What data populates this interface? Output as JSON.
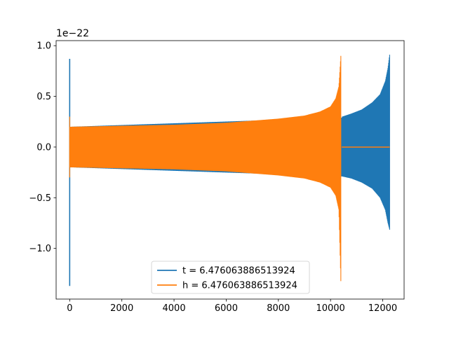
{
  "chart_data": {
    "type": "line",
    "title": "",
    "xlabel": "",
    "ylabel": "",
    "offset_label": "1e−22",
    "xlim": [
      -520,
      12820
    ],
    "ylim": [
      -1.5,
      1.05
    ],
    "x_ticks": [
      0,
      2000,
      4000,
      6000,
      8000,
      10000,
      12000
    ],
    "x_tick_labels": [
      "0",
      "2000",
      "4000",
      "6000",
      "8000",
      "10000",
      "12000"
    ],
    "y_ticks": [
      -1.0,
      -0.5,
      0.0,
      0.5,
      1.0
    ],
    "y_tick_labels": [
      "−1.0",
      "−0.5",
      "0.0",
      "0.5",
      "1.0"
    ],
    "grid": false,
    "legend_position": "lower center",
    "colors": {
      "t": "#1f77b4",
      "h": "#ff7f0e"
    },
    "series": [
      {
        "name": "t = 6.476063886513924",
        "color": "#1f77b4",
        "description": "oscillating signal; initial spike near x=0, then envelope growing toward merger",
        "spike_start": {
          "x": 0,
          "upper": 0.87,
          "lower": -1.37
        },
        "envelope_x": [
          10450,
          10800,
          11200,
          11600,
          11900,
          12100,
          12200,
          12270
        ],
        "envelope_upper": [
          0.3,
          0.33,
          0.37,
          0.44,
          0.52,
          0.65,
          0.78,
          0.92
        ],
        "envelope_lower": [
          -0.29,
          -0.31,
          -0.35,
          -0.41,
          -0.5,
          -0.62,
          -0.75,
          -0.82
        ],
        "x_end": 12270
      },
      {
        "name": "h = 6.476063886513924",
        "color": "#ff7f0e",
        "description": "oscillating signal; envelope growing toward merger then flat zero",
        "spike_start": {
          "x": 0,
          "upper": 0.3,
          "lower": -0.3
        },
        "envelope_x": [
          0,
          2000,
          4000,
          6000,
          8000,
          9000,
          9600,
          10000,
          10200,
          10320,
          10400
        ],
        "envelope_upper": [
          0.2,
          0.21,
          0.22,
          0.24,
          0.28,
          0.31,
          0.35,
          0.4,
          0.48,
          0.6,
          0.92
        ],
        "envelope_lower": [
          -0.2,
          -0.21,
          -0.22,
          -0.24,
          -0.28,
          -0.31,
          -0.35,
          -0.4,
          -0.48,
          -0.62,
          -1.37
        ],
        "flat_after": {
          "x_start": 10430,
          "x_end": 12270,
          "y": 0.0
        }
      }
    ]
  }
}
